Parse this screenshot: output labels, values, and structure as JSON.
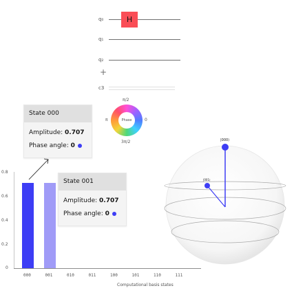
{
  "circuit": {
    "qubits": [
      "q₀",
      "q₁",
      "q₂"
    ],
    "gate_label": "H",
    "add_label": "+",
    "classical_label": "c3"
  },
  "phase_wheel": {
    "center_label": "Phase",
    "top": "π/2",
    "left": "π",
    "right": "0",
    "bottom": "3π/2"
  },
  "tooltip_000": {
    "title": "State 000",
    "amplitude_label": "Amplitude: ",
    "amplitude_value": "0.707",
    "phase_label": "Phase angle: ",
    "phase_value": "0"
  },
  "tooltip_001": {
    "title": "State 001",
    "amplitude_label": "Amplitude: ",
    "amplitude_value": "0.707",
    "phase_label": "Phase angle: ",
    "phase_value": "0"
  },
  "chart_data": {
    "type": "bar",
    "categories": [
      "000",
      "001",
      "010",
      "011",
      "100",
      "101",
      "110",
      "111"
    ],
    "values": [
      0.707,
      0.707,
      0,
      0,
      0,
      0,
      0,
      0
    ],
    "colors": [
      "#3d3df5",
      "#a09bf7",
      "#3d3df5",
      "#3d3df5",
      "#3d3df5",
      "#3d3df5",
      "#3d3df5",
      "#3d3df5"
    ],
    "ylim": [
      0,
      0.8
    ],
    "yticks": [
      "0.8",
      "0.6",
      "0.4",
      "0.2",
      "0"
    ],
    "xlabel": "Computational basis states"
  },
  "qsphere": {
    "state_000_label": "|000⟩",
    "state_001_label": "|001⟩",
    "point_color": "#3d3df5"
  }
}
